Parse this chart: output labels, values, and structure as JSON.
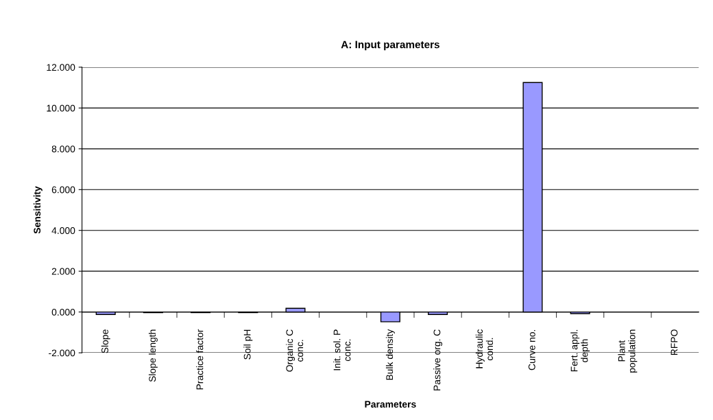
{
  "chart_data": {
    "type": "bar",
    "title": "A: Input parameters",
    "xlabel": "Parameters",
    "ylabel": "Sensitivity",
    "categories": [
      "Slope",
      "Slope length",
      "Practice factor",
      "Soil pH",
      "Organic C\nconc.",
      "Init. sol. P\nconc.",
      "Bulk density",
      "Passive org. C",
      "Hydraulic\ncond.",
      "Curve no.",
      "Fert. appl.\ndepth",
      "Plant\npopulation",
      "RFPO"
    ],
    "values": [
      -0.12,
      -0.03,
      -0.03,
      -0.03,
      0.18,
      0,
      -0.48,
      -0.12,
      0,
      11.25,
      -0.08,
      0,
      0
    ],
    "color": "#9999ff",
    "ylim": [
      -2,
      12
    ],
    "yticks": [
      {
        "value": -2,
        "label": "-2.000"
      },
      {
        "value": 0,
        "label": "0.000"
      },
      {
        "value": 2,
        "label": "2.000"
      },
      {
        "value": 4,
        "label": "4.000"
      },
      {
        "value": 6,
        "label": "6.000"
      },
      {
        "value": 8,
        "label": "8.000"
      },
      {
        "value": 10,
        "label": "10.000"
      },
      {
        "value": 12,
        "label": "12.000"
      }
    ],
    "grid": "y",
    "legend": false
  }
}
